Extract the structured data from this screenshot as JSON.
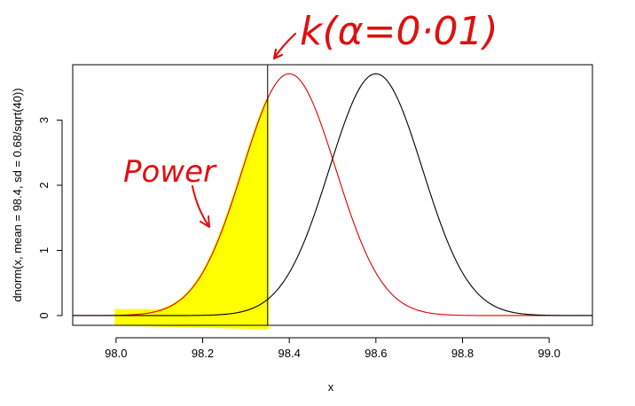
{
  "chart_data": {
    "type": "line",
    "xlabel": "x",
    "ylabel": "dnorm(x, mean = 98.4, sd = 0.68/sqrt(40))",
    "xlim": [
      97.9,
      99.1
    ],
    "ylim": [
      -0.15,
      3.85
    ],
    "xticks": [
      "98.0",
      "98.2",
      "98.4",
      "98.6",
      "98.8",
      "99.0"
    ],
    "yticks": [
      "0",
      "1",
      "2",
      "3"
    ],
    "x_range": [
      97.9,
      99.1
    ],
    "critical_value": 98.35,
    "series": [
      {
        "mean": 98.4,
        "sd": 0.1075,
        "color": "#e00000",
        "dashed": false
      },
      {
        "mean": 98.6,
        "sd": 0.1075,
        "color": "#000000",
        "dashed": false
      }
    ],
    "shaded_region": {
      "from": 98.0,
      "to": 98.35,
      "color": "#ffff00"
    },
    "annotations": [
      {
        "text": "k(α=0·01)",
        "color": "#e01010"
      },
      {
        "text": "Power",
        "color": "#e01010"
      }
    ],
    "grid": false
  }
}
